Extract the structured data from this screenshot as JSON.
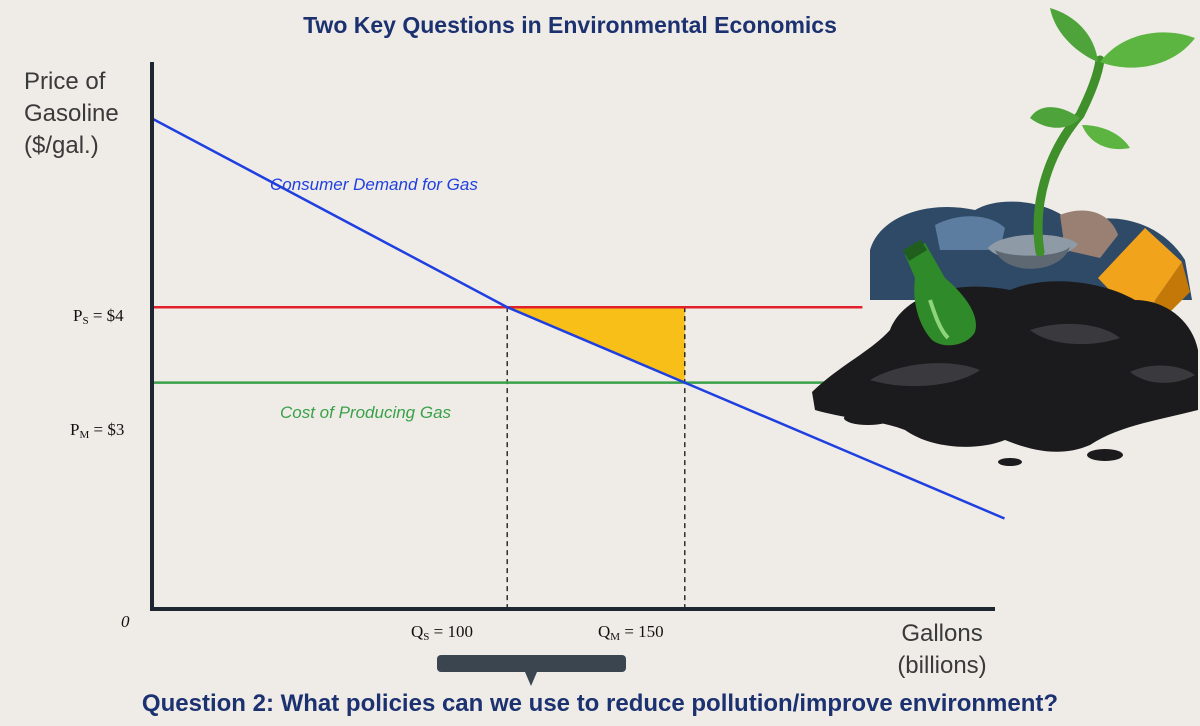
{
  "title": "Two Key Questions in Environmental Economics",
  "question": "Question 2: What policies can we use to reduce pollution/improve environment?",
  "chart_data": {
    "type": "line",
    "title": "Two Key Questions in Environmental Economics",
    "ylabel_lines": [
      "Price of",
      "Gasoline",
      "($/gal.)"
    ],
    "xlabel_lines": [
      "Gallons",
      "(billions)"
    ],
    "origin_label": "0",
    "xlim": [
      0,
      250
    ],
    "ylim": [
      0,
      6.6
    ],
    "series": [
      {
        "name": "Consumer Demand for Gas",
        "kind": "demand",
        "color": "#1f3fe0",
        "x": [
          0,
          100,
          150,
          240
        ],
        "y": [
          6.5,
          4,
          3,
          1.2
        ]
      },
      {
        "name": "",
        "kind": "price-line",
        "color": "#e0202a",
        "x": [
          0,
          200
        ],
        "y": [
          4,
          4
        ]
      },
      {
        "name": "Cost of Producing Gas",
        "kind": "supply",
        "color": "#3aa14a",
        "x": [
          0,
          200
        ],
        "y": [
          3,
          3
        ]
      }
    ],
    "price_ticks": [
      {
        "main": "P",
        "sub": "S",
        "rest": " = $4",
        "value": 4
      },
      {
        "main": "P",
        "sub": "M",
        "rest": " = $3",
        "value": 3
      }
    ],
    "quantity_ticks": [
      {
        "main": "Q",
        "sub": "S",
        "rest": " = 100",
        "value": 100
      },
      {
        "main": "Q",
        "sub": "M",
        "rest": " = 150",
        "value": 150
      }
    ],
    "shaded_triangle": {
      "color": "#f8bf18",
      "points": [
        [
          100,
          4
        ],
        [
          150,
          4
        ],
        [
          150,
          3
        ]
      ]
    },
    "grid": false,
    "legend": "none"
  },
  "colors": {
    "title": "#1c3170",
    "axis": "#1d2631",
    "bracket": "#3a4550"
  },
  "illustration": {
    "icon": "sprout-on-trash-pile-icon"
  }
}
